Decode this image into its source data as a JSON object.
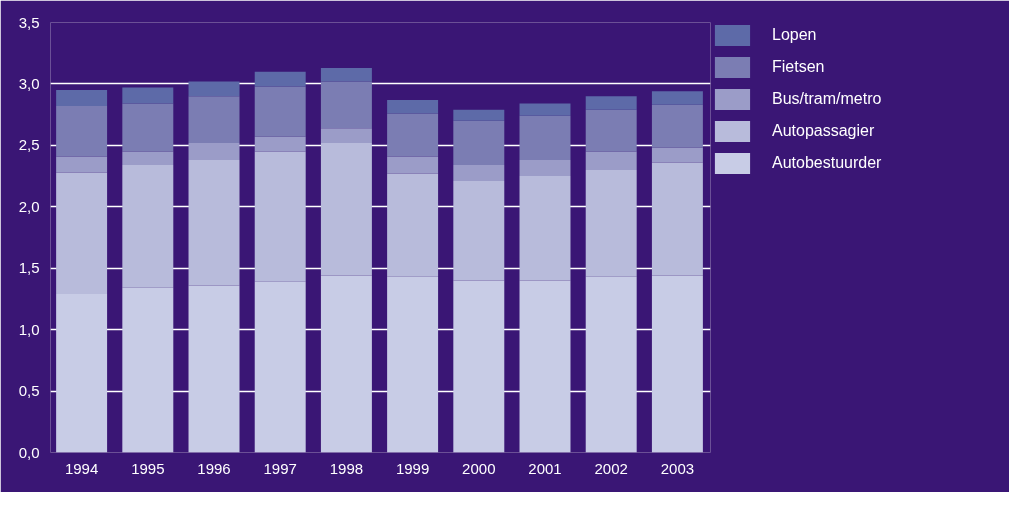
{
  "chart_data": {
    "type": "bar",
    "stacked": true,
    "categories": [
      "1994",
      "1995",
      "1996",
      "1997",
      "1998",
      "1999",
      "2000",
      "2001",
      "2002",
      "2003"
    ],
    "series": [
      {
        "name": "Autobestuurder",
        "color": "#c8cce6",
        "values": [
          1.29,
          1.34,
          1.36,
          1.39,
          1.44,
          1.43,
          1.4,
          1.4,
          1.43,
          1.44
        ]
      },
      {
        "name": "Autopassagier",
        "color": "#b8bbdb",
        "values": [
          0.99,
          1.0,
          1.02,
          1.06,
          1.08,
          0.84,
          0.81,
          0.85,
          0.87,
          0.92
        ]
      },
      {
        "name": "Bus/tram/metro",
        "color": "#9b9cc8",
        "values": [
          0.13,
          0.11,
          0.14,
          0.12,
          0.12,
          0.14,
          0.13,
          0.13,
          0.15,
          0.12
        ]
      },
      {
        "name": "Fietsen",
        "color": "#7b7db3",
        "values": [
          0.41,
          0.39,
          0.38,
          0.41,
          0.38,
          0.35,
          0.36,
          0.36,
          0.34,
          0.35
        ]
      },
      {
        "name": "Lopen",
        "color": "#5d6aa8",
        "values": [
          0.13,
          0.13,
          0.12,
          0.12,
          0.11,
          0.11,
          0.09,
          0.1,
          0.11,
          0.11
        ]
      }
    ],
    "ylim": [
      0,
      3.5
    ],
    "yticks": [
      {
        "value": 0,
        "label": "0,0"
      },
      {
        "value": 0.5,
        "label": "0,5"
      },
      {
        "value": 1,
        "label": "1,0"
      },
      {
        "value": 1.5,
        "label": "1,5"
      },
      {
        "value": 2,
        "label": "2,0"
      },
      {
        "value": 2.5,
        "label": "2,5"
      },
      {
        "value": 3,
        "label": "3,0"
      },
      {
        "value": 3.5,
        "label": "3,5"
      }
    ],
    "grid": "y",
    "legend": "top right"
  }
}
